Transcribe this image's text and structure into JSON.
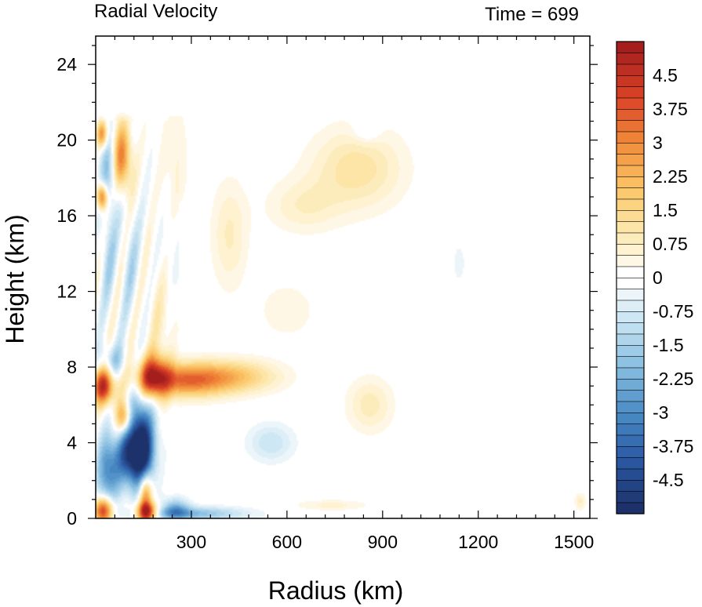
{
  "chart_data": {
    "type": "heatmap",
    "title_left": "Radial Velocity",
    "title_right": "Time = 699",
    "xlabel": "Radius (km)",
    "ylabel": "Height (km)",
    "xlim": [
      0,
      1550
    ],
    "ylim": [
      0,
      25.5
    ],
    "x_ticks": [
      300,
      600,
      900,
      1200,
      1500
    ],
    "x_tick_labels": [
      "300",
      "600",
      "900",
      "1200",
      "1500"
    ],
    "y_ticks": [
      0,
      4,
      8,
      12,
      16,
      20,
      24
    ],
    "y_tick_labels": [
      "0",
      "4",
      "8",
      "12",
      "16",
      "20",
      "24"
    ],
    "colorbar": {
      "range": [
        -5.25,
        5.25
      ],
      "step": 0.25,
      "labels": [
        "4.5",
        "3.75",
        "3",
        "2.25",
        "1.5",
        "0.75",
        "0",
        "-0.75",
        "-1.5",
        "-2.25",
        "-3",
        "-3.75",
        "-4.5"
      ],
      "label_values": [
        4.5,
        3.75,
        3,
        2.25,
        1.5,
        0.75,
        0,
        -0.75,
        -1.5,
        -2.25,
        -3,
        -3.75,
        -4.5
      ],
      "palette_anchors": [
        {
          "value": -5.25,
          "color": "#1b2e63"
        },
        {
          "value": -4.0,
          "color": "#2b5aa5"
        },
        {
          "value": -3.0,
          "color": "#4a8cc5"
        },
        {
          "value": -2.0,
          "color": "#86bde0"
        },
        {
          "value": -1.0,
          "color": "#c7e3f2"
        },
        {
          "value": -0.25,
          "color": "#f3f8fc"
        },
        {
          "value": 0,
          "color": "#ffffff"
        },
        {
          "value": 0.25,
          "color": "#fffaef"
        },
        {
          "value": 1.0,
          "color": "#fde9b0"
        },
        {
          "value": 2.0,
          "color": "#fbc565"
        },
        {
          "value": 3.0,
          "color": "#f18c3b"
        },
        {
          "value": 4.0,
          "color": "#db4326"
        },
        {
          "value": 5.25,
          "color": "#9e1a1d"
        }
      ]
    },
    "features": [
      {
        "r": 140,
        "z": 4.0,
        "sr": 30,
        "sz": 1.6,
        "v": -5.0
      },
      {
        "r": 150,
        "z": 3.0,
        "sr": 20,
        "sz": 1.2,
        "v": -2.0
      },
      {
        "r": 100,
        "z": 3.3,
        "sr": 28,
        "sz": 1.0,
        "v": -3.0
      },
      {
        "r": 40,
        "z": 2.5,
        "sr": 25,
        "sz": 1.3,
        "v": -3.0
      },
      {
        "r": 155,
        "z": 1.4,
        "sr": 15,
        "sz": 0.9,
        "v": 4.0
      },
      {
        "r": 160,
        "z": 0.3,
        "sr": 25,
        "sz": 0.35,
        "v": 5.0
      },
      {
        "r": 25,
        "z": 0.4,
        "sr": 22,
        "sz": 0.5,
        "v": 4.5
      },
      {
        "r": 25,
        "z": 7.0,
        "sr": 25,
        "sz": 0.7,
        "v": 4.5
      },
      {
        "r": 90,
        "z": 5.3,
        "sr": 18,
        "sz": 0.6,
        "v": 3.0
      },
      {
        "r": 180,
        "z": 7.5,
        "sr": 35,
        "sz": 0.8,
        "v": 4.0
      },
      {
        "r": 280,
        "z": 7.3,
        "sr": 90,
        "sz": 0.6,
        "v": 3.0
      },
      {
        "r": 430,
        "z": 7.5,
        "sr": 100,
        "sz": 0.6,
        "v": 1.8
      },
      {
        "r": 50,
        "z": 8.3,
        "sr": 30,
        "sz": 0.6,
        "v": -1.5
      },
      {
        "r": 290,
        "z": 0.25,
        "sr": 120,
        "sz": 0.25,
        "v": -2.0
      },
      {
        "r": 250,
        "z": 0.5,
        "sr": 30,
        "sz": 0.4,
        "v": -2.0
      },
      {
        "r": 550,
        "z": 4.0,
        "sr": 50,
        "sz": 0.7,
        "v": -1.0
      },
      {
        "r": 860,
        "z": 6.0,
        "sr": 50,
        "sz": 1.0,
        "v": 0.9
      },
      {
        "r": 80,
        "z": 19.0,
        "sr": 22,
        "sz": 1.3,
        "v": 3.5
      },
      {
        "r": 45,
        "z": 18.5,
        "sr": 22,
        "sz": 1.5,
        "v": -2.0
      },
      {
        "r": 20,
        "z": 17.0,
        "sr": 12,
        "sz": 0.5,
        "v": 4.0
      },
      {
        "r": 20,
        "z": 20.3,
        "sr": 12,
        "sz": 0.5,
        "v": 3.0
      },
      {
        "r": 110,
        "z": 13.5,
        "sr": 20,
        "sz": 2.0,
        "v": -0.8
      },
      {
        "r": 40,
        "z": 14.0,
        "sr": 18,
        "sz": 2.0,
        "v": -1.0
      },
      {
        "r": 420,
        "z": 15.0,
        "sr": 40,
        "sz": 2.0,
        "v": 0.8
      },
      {
        "r": 820,
        "z": 18.5,
        "sr": 100,
        "sz": 1.5,
        "v": 1.2
      },
      {
        "r": 650,
        "z": 16.5,
        "sr": 80,
        "sz": 1.0,
        "v": 0.7
      },
      {
        "r": 250,
        "z": 18.0,
        "sr": 30,
        "sz": 3.0,
        "v": 0.6
      },
      {
        "r": 250,
        "z": 14.5,
        "sr": 30,
        "sz": 2.0,
        "v": -0.5
      },
      {
        "r": 600,
        "z": 11.0,
        "sr": 60,
        "sz": 1.0,
        "v": 0.5
      },
      {
        "r": 850,
        "z": 20.5,
        "sr": 30,
        "sz": 0.5,
        "v": -0.6
      },
      {
        "r": 1140,
        "z": 13.5,
        "sr": 15,
        "sz": 0.8,
        "v": -0.4
      },
      {
        "r": 740,
        "z": 0.7,
        "sr": 80,
        "sz": 0.2,
        "v": 0.6
      },
      {
        "r": 1520,
        "z": 0.9,
        "sr": 12,
        "sz": 0.3,
        "v": 0.8
      },
      {
        "r": 200,
        "z": 10.5,
        "sr": 30,
        "sz": 2.0,
        "v": 0.7
      }
    ]
  }
}
